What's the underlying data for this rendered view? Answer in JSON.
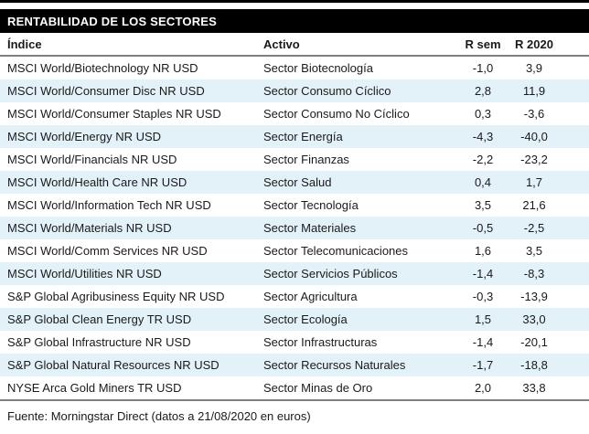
{
  "title": "RENTABILIDAD DE LOS SECTORES",
  "table": {
    "columns": {
      "indice": "Índice",
      "activo": "Activo",
      "r_sem": "R sem",
      "r_2020": "R 2020"
    },
    "rows": [
      {
        "indice": "MSCI World/Biotechnology NR USD",
        "activo": "Sector Biotecnología",
        "r_sem": "-1,0",
        "r_2020": "3,9"
      },
      {
        "indice": "MSCI World/Consumer Disc NR USD",
        "activo": "Sector Consumo Cíclico",
        "r_sem": "2,8",
        "r_2020": "11,9"
      },
      {
        "indice": "MSCI World/Consumer Staples NR USD",
        "activo": "Sector Consumo No Cíclico",
        "r_sem": "0,3",
        "r_2020": "-3,6"
      },
      {
        "indice": "MSCI World/Energy NR USD",
        "activo": "Sector Energía",
        "r_sem": "-4,3",
        "r_2020": "-40,0"
      },
      {
        "indice": "MSCI World/Financials NR USD",
        "activo": "Sector Finanzas",
        "r_sem": "-2,2",
        "r_2020": "-23,2"
      },
      {
        "indice": "MSCI World/Health Care NR USD",
        "activo": "Sector Salud",
        "r_sem": "0,4",
        "r_2020": "1,7"
      },
      {
        "indice": "MSCI World/Information Tech NR USD",
        "activo": "Sector Tecnología",
        "r_sem": "3,5",
        "r_2020": "21,6"
      },
      {
        "indice": "MSCI World/Materials NR USD",
        "activo": "Sector Materiales",
        "r_sem": "-0,5",
        "r_2020": "-2,5"
      },
      {
        "indice": "MSCI World/Comm Services NR USD",
        "activo": "Sector Telecomunicaciones",
        "r_sem": "1,6",
        "r_2020": "3,5"
      },
      {
        "indice": "MSCI World/Utilities NR USD",
        "activo": "Sector Servicios Públicos",
        "r_sem": "-1,4",
        "r_2020": "-8,3"
      },
      {
        "indice": "S&P Global Agribusiness Equity NR USD",
        "activo": "Sector Agricultura",
        "r_sem": "-0,3",
        "r_2020": "-13,9"
      },
      {
        "indice": "S&P Global Clean Energy TR USD",
        "activo": "Sector Ecología",
        "r_sem": "1,5",
        "r_2020": "33,0"
      },
      {
        "indice": "S&P Global Infrastructure NR USD",
        "activo": "Sector Infrastructuras",
        "r_sem": "-1,4",
        "r_2020": "-20,1"
      },
      {
        "indice": "S&P Global Natural Resources NR USD",
        "activo": "Sector Recursos Naturales",
        "r_sem": "-1,7",
        "r_2020": "-18,8"
      },
      {
        "indice": "NYSE Arca Gold Miners TR USD",
        "activo": "Sector Minas de Oro",
        "r_sem": "2,0",
        "r_2020": "33,8"
      }
    ]
  },
  "footer": "Fuente: Morningstar Direct (datos a 21/08/2020 en euros)",
  "colors": {
    "title_bar_bg": "#000000",
    "title_text": "#ffffff",
    "row_stripe": "#e3f1f8",
    "rule_gray": "#7f7f7f",
    "body_text": "#1a1a1a"
  }
}
